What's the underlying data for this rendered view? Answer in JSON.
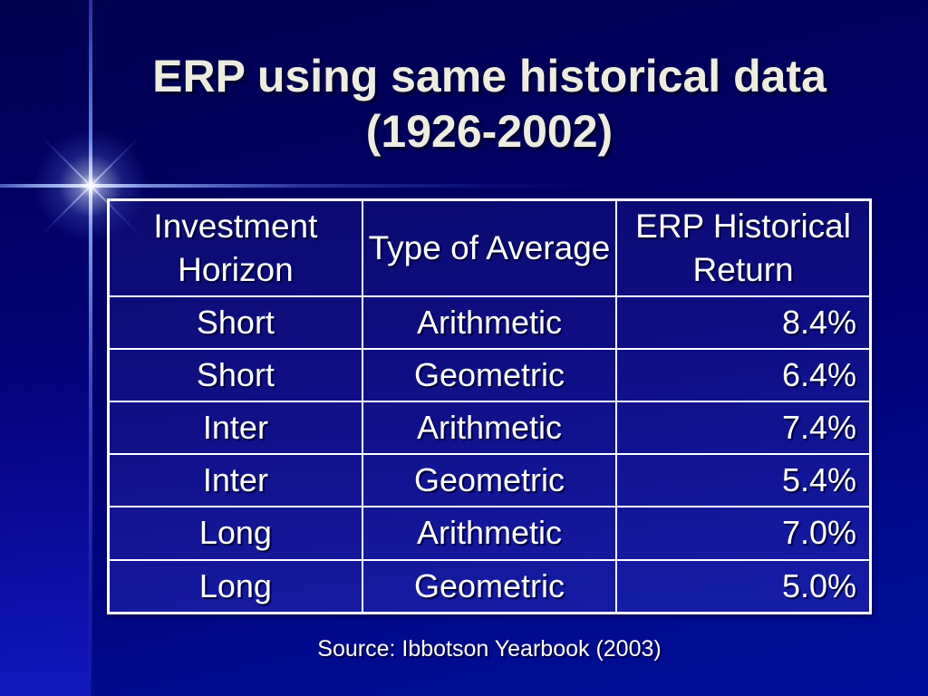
{
  "slide": {
    "title_line1": "ERP using same historical data",
    "title_line2": "(1926-2002)",
    "source": "Source: Ibbotson Yearbook (2003)"
  },
  "table": {
    "headers": [
      "Investment Horizon",
      "Type of Average",
      "ERP Historical Return"
    ],
    "rows": [
      {
        "horizon": "Short",
        "average": "Arithmetic",
        "return": "8.4%"
      },
      {
        "horizon": "Short",
        "average": "Geometric",
        "return": "6.4%"
      },
      {
        "horizon": "Inter",
        "average": "Arithmetic",
        "return": "7.4%"
      },
      {
        "horizon": "Inter",
        "average": "Geometric",
        "return": "5.4%"
      },
      {
        "horizon": "Long",
        "average": "Arithmetic",
        "return": "7.0%"
      },
      {
        "horizon": "Long",
        "average": "Geometric",
        "return": "5.0%"
      }
    ]
  },
  "chart_data": {
    "type": "table",
    "title": "ERP using same historical data (1926-2002)",
    "columns": [
      "Investment Horizon",
      "Type of Average",
      "ERP Historical Return"
    ],
    "rows": [
      [
        "Short",
        "Arithmetic",
        "8.4%"
      ],
      [
        "Short",
        "Geometric",
        "6.4%"
      ],
      [
        "Inter",
        "Arithmetic",
        "7.4%"
      ],
      [
        "Inter",
        "Geometric",
        "5.4%"
      ],
      [
        "Long",
        "Arithmetic",
        "7.0%"
      ],
      [
        "Long",
        "Geometric",
        "5.0%"
      ]
    ],
    "source": "Source: Ibbotson Yearbook (2003)"
  },
  "colors": {
    "background_top": "#000050",
    "background_bottom": "#000d9c",
    "table_border": "#ffffff",
    "text": "#ffffff",
    "title_text": "#edece1",
    "flare": "#ffffff"
  }
}
